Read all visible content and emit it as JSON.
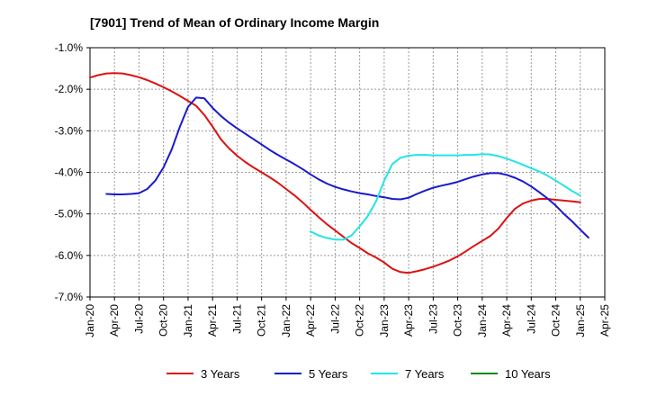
{
  "chart_data": {
    "type": "line",
    "title": "[7901]  Trend of Mean of Ordinary Income Margin",
    "xlabel": "",
    "ylabel": "",
    "x_ticks": [
      "Jan-20",
      "Apr-20",
      "Jul-20",
      "Oct-20",
      "Jan-21",
      "Apr-21",
      "Jul-21",
      "Oct-21",
      "Jan-22",
      "Apr-22",
      "Jul-22",
      "Oct-22",
      "Jan-23",
      "Apr-23",
      "Jul-23",
      "Oct-23",
      "Jan-24",
      "Apr-24",
      "Jul-24",
      "Oct-24",
      "Jan-25",
      "Apr-25"
    ],
    "y_ticks": [
      "-1.0%",
      "-2.0%",
      "-3.0%",
      "-4.0%",
      "-5.0%",
      "-6.0%",
      "-7.0%"
    ],
    "ylim": [
      -7.0,
      -1.0
    ],
    "grid": true,
    "legend_position": "bottom",
    "series": [
      {
        "name": "3 Years",
        "color": "#dd1111",
        "points": [
          [
            "Jan-20",
            -1.72
          ],
          [
            "Feb-20",
            -1.66
          ],
          [
            "Mar-20",
            -1.62
          ],
          [
            "Apr-20",
            -1.61
          ],
          [
            "May-20",
            -1.62
          ],
          [
            "Jun-20",
            -1.66
          ],
          [
            "Jul-20",
            -1.71
          ],
          [
            "Aug-20",
            -1.78
          ],
          [
            "Sep-20",
            -1.86
          ],
          [
            "Oct-20",
            -1.95
          ],
          [
            "Nov-20",
            -2.05
          ],
          [
            "Dec-20",
            -2.16
          ],
          [
            "Jan-21",
            -2.28
          ],
          [
            "Feb-21",
            -2.4
          ],
          [
            "Mar-21",
            -2.62
          ],
          [
            "Apr-21",
            -2.9
          ],
          [
            "May-21",
            -3.2
          ],
          [
            "Jun-21",
            -3.42
          ],
          [
            "Jul-21",
            -3.6
          ],
          [
            "Aug-21",
            -3.75
          ],
          [
            "Sep-21",
            -3.88
          ],
          [
            "Oct-21",
            -4.0
          ],
          [
            "Nov-21",
            -4.12
          ],
          [
            "Dec-21",
            -4.25
          ],
          [
            "Jan-22",
            -4.4
          ],
          [
            "Feb-22",
            -4.55
          ],
          [
            "Mar-22",
            -4.72
          ],
          [
            "Apr-22",
            -4.9
          ],
          [
            "May-22",
            -5.08
          ],
          [
            "Jun-22",
            -5.25
          ],
          [
            "Jul-22",
            -5.4
          ],
          [
            "Aug-22",
            -5.55
          ],
          [
            "Sep-22",
            -5.7
          ],
          [
            "Oct-22",
            -5.82
          ],
          [
            "Nov-22",
            -5.95
          ],
          [
            "Dec-22",
            -6.05
          ],
          [
            "Jan-23",
            -6.17
          ],
          [
            "Feb-23",
            -6.32
          ],
          [
            "Mar-23",
            -6.4
          ],
          [
            "Apr-23",
            -6.42
          ],
          [
            "May-23",
            -6.38
          ],
          [
            "Jun-23",
            -6.33
          ],
          [
            "Jul-23",
            -6.27
          ],
          [
            "Aug-23",
            -6.2
          ],
          [
            "Sep-23",
            -6.12
          ],
          [
            "Oct-23",
            -6.02
          ],
          [
            "Nov-23",
            -5.9
          ],
          [
            "Dec-23",
            -5.77
          ],
          [
            "Jan-24",
            -5.65
          ],
          [
            "Feb-24",
            -5.53
          ],
          [
            "Mar-24",
            -5.35
          ],
          [
            "Apr-24",
            -5.1
          ],
          [
            "May-24",
            -4.88
          ],
          [
            "Jun-24",
            -4.75
          ],
          [
            "Jul-24",
            -4.68
          ],
          [
            "Aug-24",
            -4.64
          ],
          [
            "Sep-24",
            -4.64
          ],
          [
            "Oct-24",
            -4.66
          ],
          [
            "Nov-24",
            -4.68
          ],
          [
            "Dec-24",
            -4.7
          ],
          [
            "Jan-25",
            -4.72
          ]
        ]
      },
      {
        "name": "5 Years",
        "color": "#1a1acc",
        "points": [
          [
            "Mar-20",
            -4.52
          ],
          [
            "Apr-20",
            -4.53
          ],
          [
            "May-20",
            -4.53
          ],
          [
            "Jun-20",
            -4.52
          ],
          [
            "Jul-20",
            -4.5
          ],
          [
            "Aug-20",
            -4.4
          ],
          [
            "Sep-20",
            -4.2
          ],
          [
            "Oct-20",
            -3.88
          ],
          [
            "Nov-20",
            -3.45
          ],
          [
            "Dec-20",
            -2.9
          ],
          [
            "Jan-21",
            -2.42
          ],
          [
            "Feb-21",
            -2.2
          ],
          [
            "Mar-21",
            -2.22
          ],
          [
            "Apr-21",
            -2.45
          ],
          [
            "May-21",
            -2.64
          ],
          [
            "Jun-21",
            -2.8
          ],
          [
            "Jul-21",
            -2.94
          ],
          [
            "Aug-21",
            -3.07
          ],
          [
            "Sep-21",
            -3.2
          ],
          [
            "Oct-21",
            -3.33
          ],
          [
            "Nov-21",
            -3.46
          ],
          [
            "Dec-21",
            -3.58
          ],
          [
            "Jan-22",
            -3.69
          ],
          [
            "Feb-22",
            -3.8
          ],
          [
            "Mar-22",
            -3.92
          ],
          [
            "Apr-22",
            -4.05
          ],
          [
            "May-22",
            -4.17
          ],
          [
            "Jun-22",
            -4.27
          ],
          [
            "Jul-22",
            -4.35
          ],
          [
            "Aug-22",
            -4.41
          ],
          [
            "Sep-22",
            -4.46
          ],
          [
            "Oct-22",
            -4.5
          ],
          [
            "Nov-22",
            -4.53
          ],
          [
            "Dec-22",
            -4.57
          ],
          [
            "Jan-23",
            -4.6
          ],
          [
            "Feb-23",
            -4.64
          ],
          [
            "Mar-23",
            -4.65
          ],
          [
            "Apr-23",
            -4.61
          ],
          [
            "May-23",
            -4.52
          ],
          [
            "Jun-23",
            -4.44
          ],
          [
            "Jul-23",
            -4.37
          ],
          [
            "Aug-23",
            -4.32
          ],
          [
            "Sep-23",
            -4.28
          ],
          [
            "Oct-23",
            -4.23
          ],
          [
            "Nov-23",
            -4.16
          ],
          [
            "Dec-23",
            -4.1
          ],
          [
            "Jan-24",
            -4.05
          ],
          [
            "Feb-24",
            -4.02
          ],
          [
            "Mar-24",
            -4.02
          ],
          [
            "Apr-24",
            -4.06
          ],
          [
            "May-24",
            -4.13
          ],
          [
            "Jun-24",
            -4.22
          ],
          [
            "Jul-24",
            -4.34
          ],
          [
            "Aug-24",
            -4.48
          ],
          [
            "Sep-24",
            -4.63
          ],
          [
            "Oct-24",
            -4.8
          ],
          [
            "Nov-24",
            -5.0
          ],
          [
            "Dec-24",
            -5.18
          ],
          [
            "Jan-25",
            -5.38
          ],
          [
            "Feb-25",
            -5.57
          ]
        ]
      },
      {
        "name": "7 Years",
        "color": "#22e5e5",
        "points": [
          [
            "Apr-22",
            -5.42
          ],
          [
            "May-22",
            -5.52
          ],
          [
            "Jun-22",
            -5.58
          ],
          [
            "Jul-22",
            -5.62
          ],
          [
            "Aug-22",
            -5.62
          ],
          [
            "Sep-22",
            -5.52
          ],
          [
            "Oct-22",
            -5.3
          ],
          [
            "Nov-22",
            -5.05
          ],
          [
            "Dec-22",
            -4.7
          ],
          [
            "Jan-23",
            -4.2
          ],
          [
            "Feb-23",
            -3.8
          ],
          [
            "Mar-23",
            -3.65
          ],
          [
            "Apr-23",
            -3.6
          ],
          [
            "May-23",
            -3.58
          ],
          [
            "Jun-23",
            -3.58
          ],
          [
            "Jul-23",
            -3.59
          ],
          [
            "Aug-23",
            -3.59
          ],
          [
            "Sep-23",
            -3.59
          ],
          [
            "Oct-23",
            -3.59
          ],
          [
            "Nov-23",
            -3.58
          ],
          [
            "Dec-23",
            -3.58
          ],
          [
            "Jan-24",
            -3.56
          ],
          [
            "Feb-24",
            -3.57
          ],
          [
            "Mar-24",
            -3.61
          ],
          [
            "Apr-24",
            -3.67
          ],
          [
            "May-24",
            -3.74
          ],
          [
            "Jun-24",
            -3.82
          ],
          [
            "Jul-24",
            -3.9
          ],
          [
            "Aug-24",
            -3.98
          ],
          [
            "Sep-24",
            -4.08
          ],
          [
            "Oct-24",
            -4.2
          ],
          [
            "Nov-24",
            -4.32
          ],
          [
            "Dec-24",
            -4.45
          ],
          [
            "Jan-25",
            -4.56
          ]
        ]
      },
      {
        "name": "10 Years",
        "color": "#118811",
        "points": []
      }
    ]
  }
}
